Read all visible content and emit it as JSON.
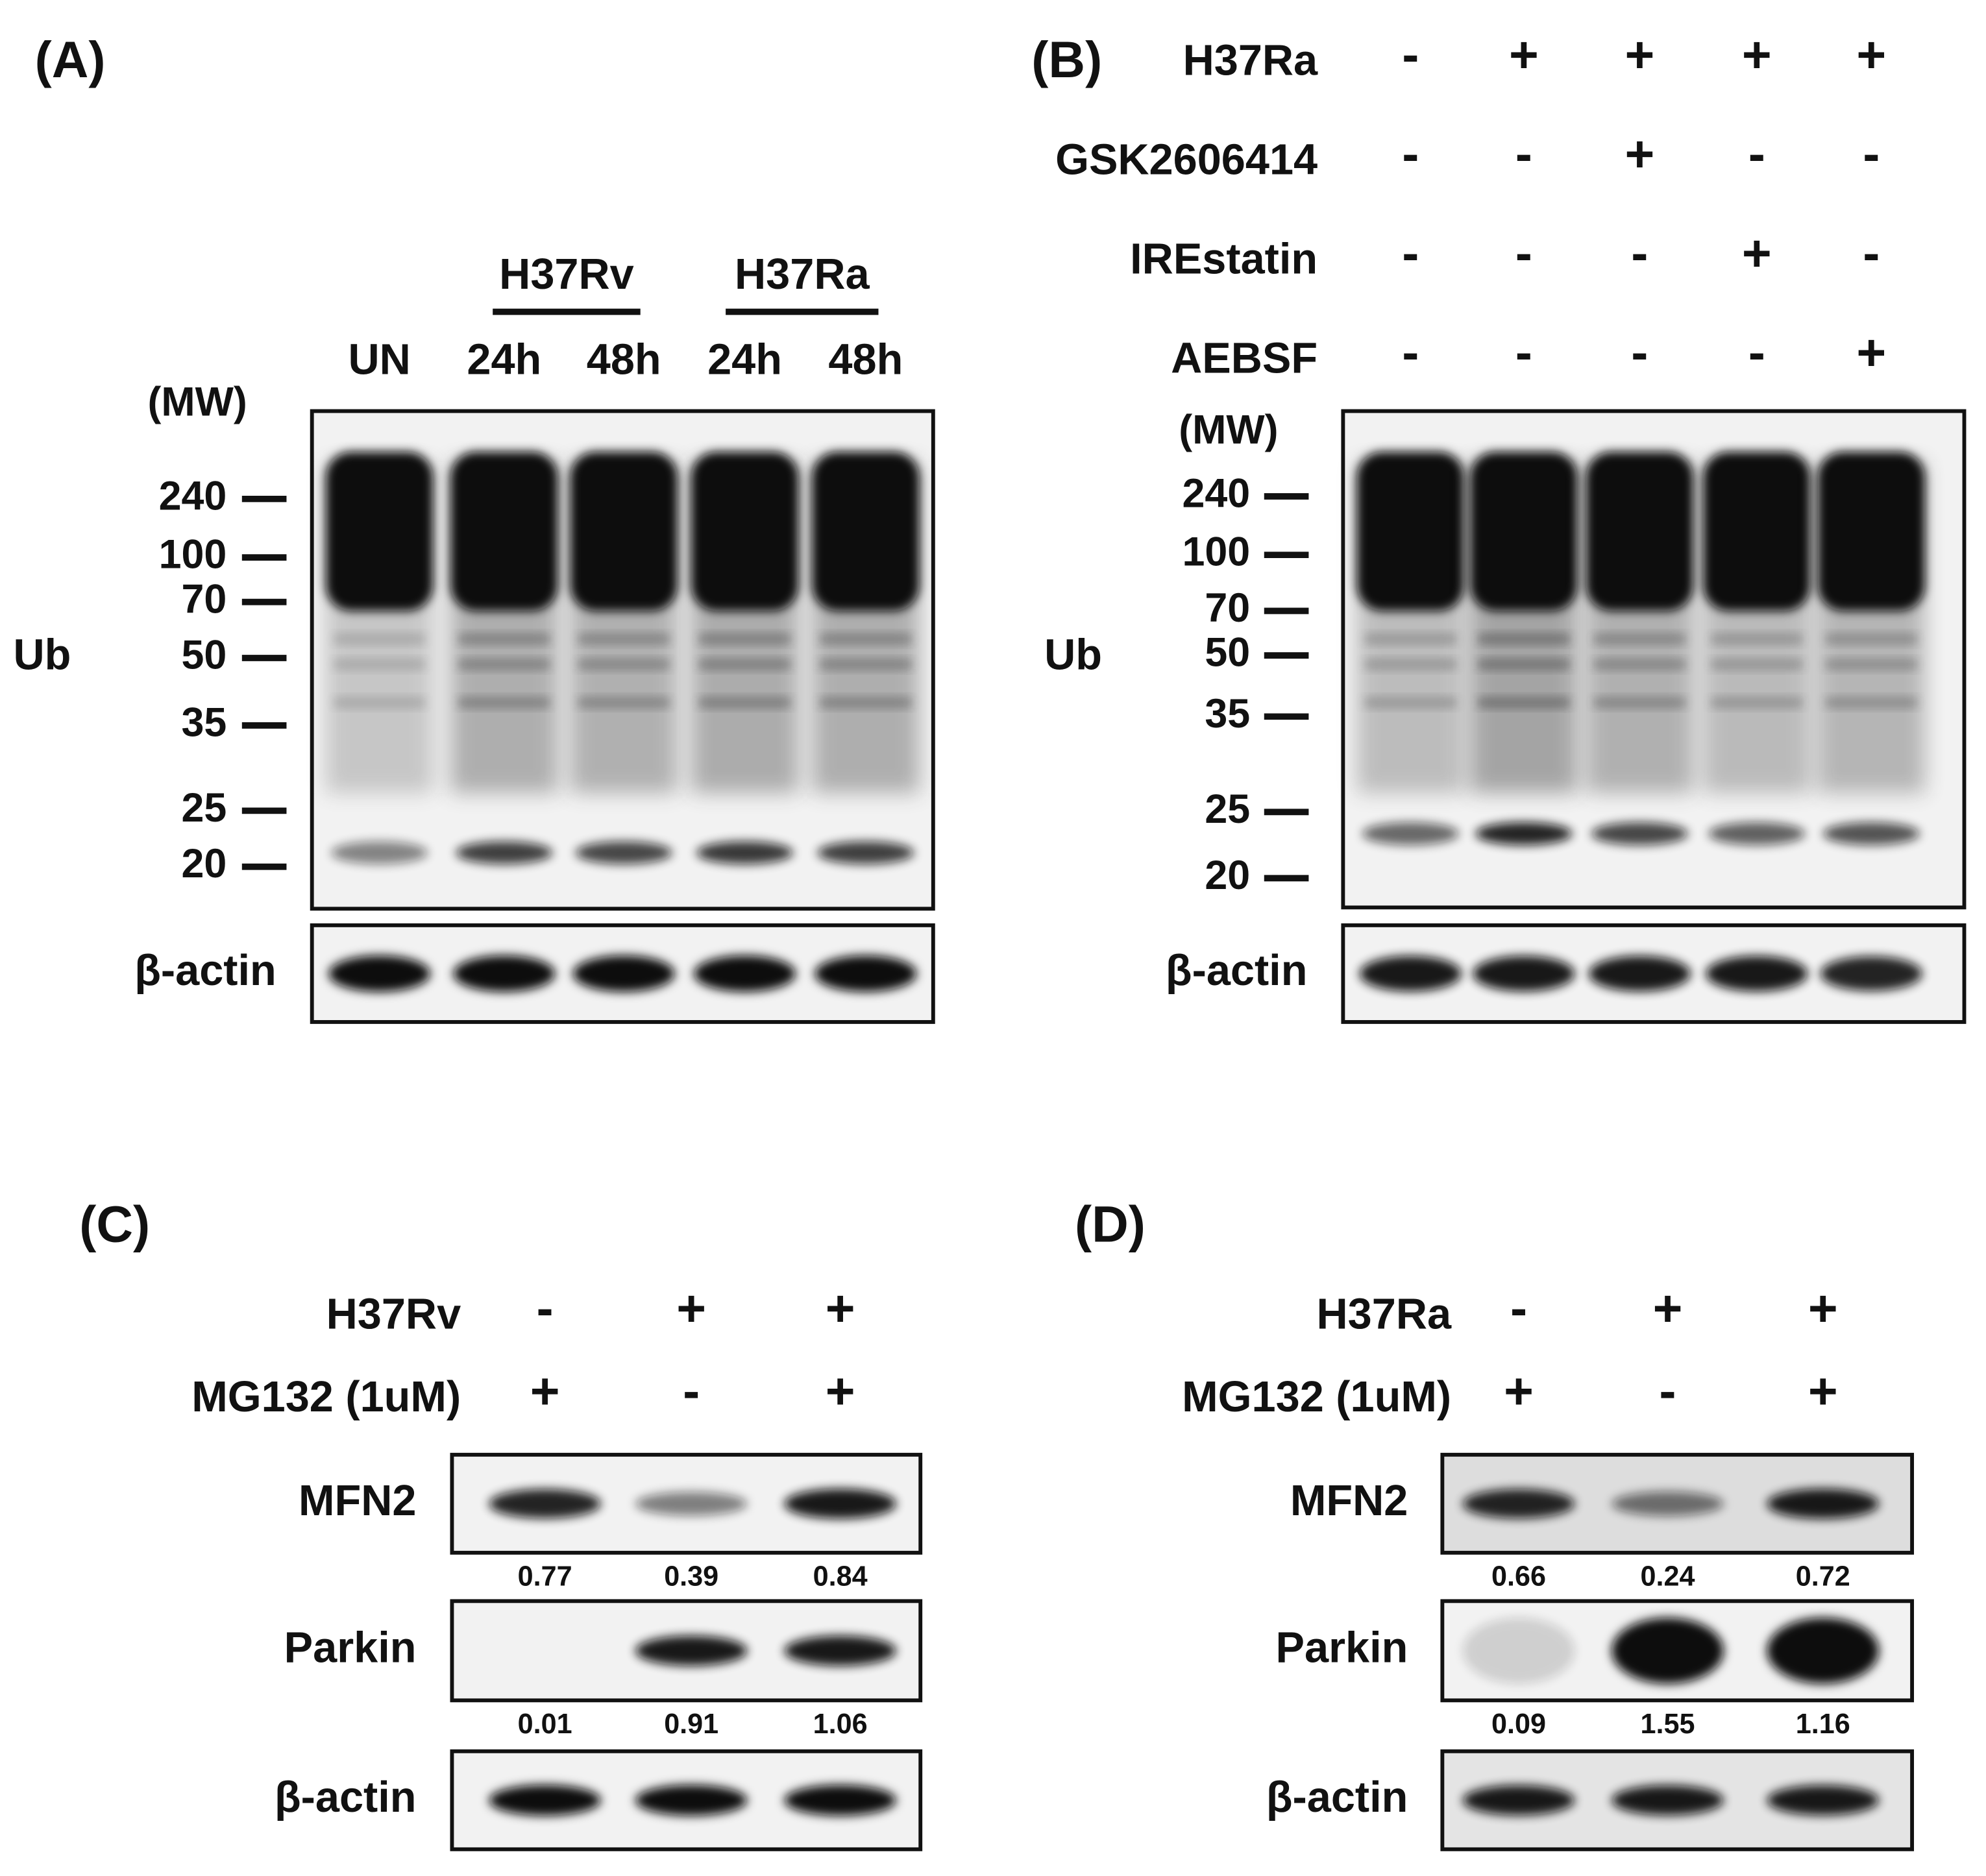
{
  "panels": [
    {
      "label": "(A)",
      "groups": [
        "H37Rv",
        "H37Ra"
      ],
      "lanes": [
        "UN",
        "24h",
        "48h",
        "24h",
        "48h"
      ],
      "mw_label": "(MW)",
      "markers": [
        "240",
        "100",
        "70",
        "50",
        "35",
        "25",
        "20"
      ],
      "blots": [
        {
          "name": "Ub"
        },
        {
          "name": "β-actin"
        }
      ]
    },
    {
      "label": "(B)",
      "conditions": [
        {
          "name": "H37Ra",
          "signs": [
            "-",
            "+",
            "+",
            "+",
            "+"
          ]
        },
        {
          "name": "GSK2606414",
          "signs": [
            "-",
            "-",
            "+",
            "-",
            "-"
          ]
        },
        {
          "name": "IREstatin",
          "signs": [
            "-",
            "-",
            "-",
            "+",
            "-"
          ]
        },
        {
          "name": "AEBSF",
          "signs": [
            "-",
            "-",
            "-",
            "-",
            "+"
          ]
        }
      ],
      "mw_label": "(MW)",
      "markers": [
        "240",
        "100",
        "70",
        "50",
        "35",
        "25",
        "20"
      ],
      "blots": [
        {
          "name": "Ub"
        },
        {
          "name": "β-actin"
        }
      ]
    },
    {
      "label": "(C)",
      "conditions": [
        {
          "name": "H37Rv",
          "signs": [
            "-",
            "+",
            "+"
          ]
        },
        {
          "name": "MG132 (1uM)",
          "signs": [
            "+",
            "-",
            "+"
          ]
        }
      ],
      "blots": [
        {
          "name": "MFN2",
          "quant": [
            "0.77",
            "0.39",
            "0.84"
          ]
        },
        {
          "name": "Parkin",
          "quant": [
            "0.01",
            "0.91",
            "1.06"
          ]
        },
        {
          "name": "β-actin"
        }
      ]
    },
    {
      "label": "(D)",
      "conditions": [
        {
          "name": "H37Ra",
          "signs": [
            "-",
            "+",
            "+"
          ]
        },
        {
          "name": "MG132 (1uM)",
          "signs": [
            "+",
            "-",
            "+"
          ]
        }
      ],
      "blots": [
        {
          "name": "MFN2",
          "quant": [
            "0.66",
            "0.24",
            "0.72"
          ]
        },
        {
          "name": "Parkin",
          "quant": [
            "0.09",
            "1.55",
            "1.16"
          ]
        },
        {
          "name": "β-actin"
        }
      ]
    }
  ]
}
